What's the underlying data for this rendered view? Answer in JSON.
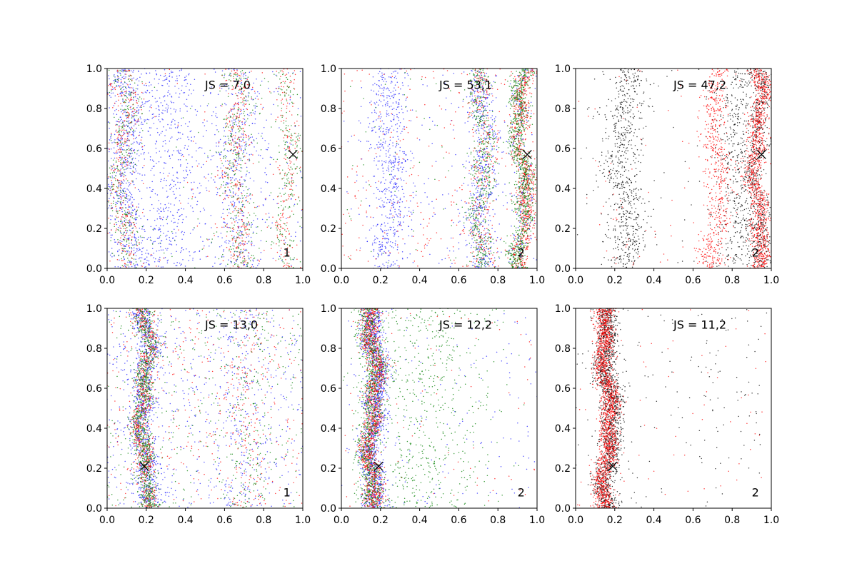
{
  "colors": {
    "blue": "#1f1fff",
    "red": "#ff0000",
    "green": "#007f00",
    "black": "#000000",
    "marker": "#000000"
  },
  "chart_data": [
    {
      "type": "scatter",
      "panel": "top-left",
      "annotation": "JS = 7,0",
      "corner_label": "1",
      "xlim": [
        0,
        1
      ],
      "ylim": [
        0,
        1
      ],
      "xticks": [
        "0.0",
        "0.2",
        "0.4",
        "0.6",
        "0.8",
        "1.0"
      ],
      "yticks": [
        "0.0",
        "0.2",
        "0.4",
        "0.6",
        "0.8",
        "1.0"
      ],
      "marker_point": {
        "x": 0.95,
        "y": 0.57
      },
      "series": [
        {
          "color": "blue",
          "count": 1800,
          "bands": [
            [
              0.1,
              0.05,
              0.35
            ],
            [
              0.33,
              0.08,
              0.25
            ],
            [
              0.66,
              0.05,
              0.2
            ],
            [
              0.5,
              0.3,
              0.2
            ]
          ]
        },
        {
          "color": "red",
          "count": 900,
          "bands": [
            [
              0.08,
              0.04,
              0.35
            ],
            [
              0.66,
              0.04,
              0.35
            ],
            [
              0.92,
              0.03,
              0.2
            ],
            [
              0.5,
              0.3,
              0.1
            ]
          ]
        },
        {
          "color": "green",
          "count": 900,
          "bands": [
            [
              0.08,
              0.04,
              0.35
            ],
            [
              0.66,
              0.04,
              0.35
            ],
            [
              0.92,
              0.03,
              0.2
            ],
            [
              0.5,
              0.3,
              0.1
            ]
          ]
        }
      ]
    },
    {
      "type": "scatter",
      "panel": "top-middle",
      "annotation": "JS = 53,1",
      "corner_label": "2",
      "xlim": [
        0,
        1
      ],
      "ylim": [
        0,
        1
      ],
      "xticks": [
        "0.0",
        "0.2",
        "0.4",
        "0.6",
        "0.8",
        "1.0"
      ],
      "yticks": [
        "0.0",
        "0.2",
        "0.4",
        "0.6",
        "0.8",
        "1.0"
      ],
      "marker_point": {
        "x": 0.95,
        "y": 0.57
      },
      "series": [
        {
          "color": "blue",
          "count": 1500,
          "bands": [
            [
              0.25,
              0.05,
              0.4
            ],
            [
              0.72,
              0.04,
              0.35
            ],
            [
              0.92,
              0.025,
              0.15
            ],
            [
              0.5,
              0.3,
              0.1
            ]
          ]
        },
        {
          "color": "red",
          "count": 1300,
          "bands": [
            [
              0.93,
              0.025,
              0.6
            ],
            [
              0.72,
              0.035,
              0.2
            ],
            [
              0.5,
              0.3,
              0.2
            ]
          ]
        },
        {
          "color": "green",
          "count": 1500,
          "bands": [
            [
              0.92,
              0.025,
              0.6
            ],
            [
              0.72,
              0.03,
              0.35
            ],
            [
              0.5,
              0.3,
              0.05
            ]
          ]
        }
      ]
    },
    {
      "type": "scatter",
      "panel": "top-right",
      "annotation": "JS = 47,2",
      "corner_label": "2",
      "xlim": [
        0,
        1
      ],
      "ylim": [
        0,
        1
      ],
      "xticks": [
        "0.0",
        "0.2",
        "0.4",
        "0.6",
        "0.8",
        "1.0"
      ],
      "yticks": [
        "0.0",
        "0.2",
        "0.4",
        "0.6",
        "0.8",
        "1.0"
      ],
      "marker_point": {
        "x": 0.95,
        "y": 0.57
      },
      "series": [
        {
          "color": "black",
          "count": 1900,
          "bands": [
            [
              0.25,
              0.05,
              0.35
            ],
            [
              0.82,
              0.05,
              0.25
            ],
            [
              0.93,
              0.03,
              0.35
            ],
            [
              0.5,
              0.3,
              0.05
            ]
          ]
        },
        {
          "color": "red",
          "count": 1800,
          "bands": [
            [
              0.93,
              0.025,
              0.65
            ],
            [
              0.72,
              0.035,
              0.3
            ],
            [
              0.5,
              0.3,
              0.05
            ]
          ]
        }
      ]
    },
    {
      "type": "scatter",
      "panel": "bottom-left",
      "annotation": "JS = 13,0",
      "corner_label": "1",
      "xlim": [
        0,
        1
      ],
      "ylim": [
        0,
        1
      ],
      "xticks": [
        "0.0",
        "0.2",
        "0.4",
        "0.6",
        "0.8",
        "1.0"
      ],
      "yticks": [
        "0.0",
        "0.2",
        "0.4",
        "0.6",
        "0.8",
        "1.0"
      ],
      "marker_point": {
        "x": 0.19,
        "y": 0.21
      },
      "series": [
        {
          "color": "blue",
          "count": 1700,
          "bands": [
            [
              0.19,
              0.035,
              0.55
            ],
            [
              0.7,
              0.06,
              0.1
            ],
            [
              0.5,
              0.3,
              0.35
            ]
          ]
        },
        {
          "color": "red",
          "count": 1200,
          "bands": [
            [
              0.19,
              0.025,
              0.6
            ],
            [
              0.72,
              0.05,
              0.1
            ],
            [
              0.5,
              0.3,
              0.3
            ]
          ]
        },
        {
          "color": "green",
          "count": 1400,
          "bands": [
            [
              0.19,
              0.025,
              0.65
            ],
            [
              0.72,
              0.05,
              0.1
            ],
            [
              0.5,
              0.3,
              0.25
            ]
          ]
        }
      ]
    },
    {
      "type": "scatter",
      "panel": "bottom-middle",
      "annotation": "JS = 12,2",
      "corner_label": "2",
      "xlim": [
        0,
        1
      ],
      "ylim": [
        0,
        1
      ],
      "xticks": [
        "0.0",
        "0.2",
        "0.4",
        "0.6",
        "0.8",
        "1.0"
      ],
      "yticks": [
        "0.0",
        "0.2",
        "0.4",
        "0.6",
        "0.8",
        "1.0"
      ],
      "marker_point": {
        "x": 0.19,
        "y": 0.21
      },
      "series": [
        {
          "color": "blue",
          "count": 1500,
          "bands": [
            [
              0.17,
              0.03,
              0.9
            ],
            [
              0.5,
              0.3,
              0.1
            ]
          ]
        },
        {
          "color": "red",
          "count": 1400,
          "bands": [
            [
              0.16,
              0.025,
              0.95
            ],
            [
              0.5,
              0.3,
              0.05
            ]
          ]
        },
        {
          "color": "green",
          "count": 1600,
          "bands": [
            [
              0.15,
              0.03,
              0.55
            ],
            [
              0.4,
              0.2,
              0.45
            ]
          ]
        }
      ]
    },
    {
      "type": "scatter",
      "panel": "bottom-right",
      "annotation": "JS = 11,2",
      "corner_label": "2",
      "xlim": [
        0,
        1
      ],
      "ylim": [
        0,
        1
      ],
      "xticks": [
        "0.0",
        "0.2",
        "0.4",
        "0.6",
        "0.8",
        "1.0"
      ],
      "yticks": [
        "0.0",
        "0.2",
        "0.4",
        "0.6",
        "0.8",
        "1.0"
      ],
      "marker_point": {
        "x": 0.19,
        "y": 0.21
      },
      "series": [
        {
          "color": "black",
          "count": 1700,
          "bands": [
            [
              0.17,
              0.03,
              0.9
            ],
            [
              0.5,
              0.3,
              0.1
            ]
          ]
        },
        {
          "color": "red",
          "count": 1800,
          "bands": [
            [
              0.16,
              0.025,
              0.95
            ],
            [
              0.5,
              0.3,
              0.05
            ]
          ]
        }
      ]
    }
  ]
}
